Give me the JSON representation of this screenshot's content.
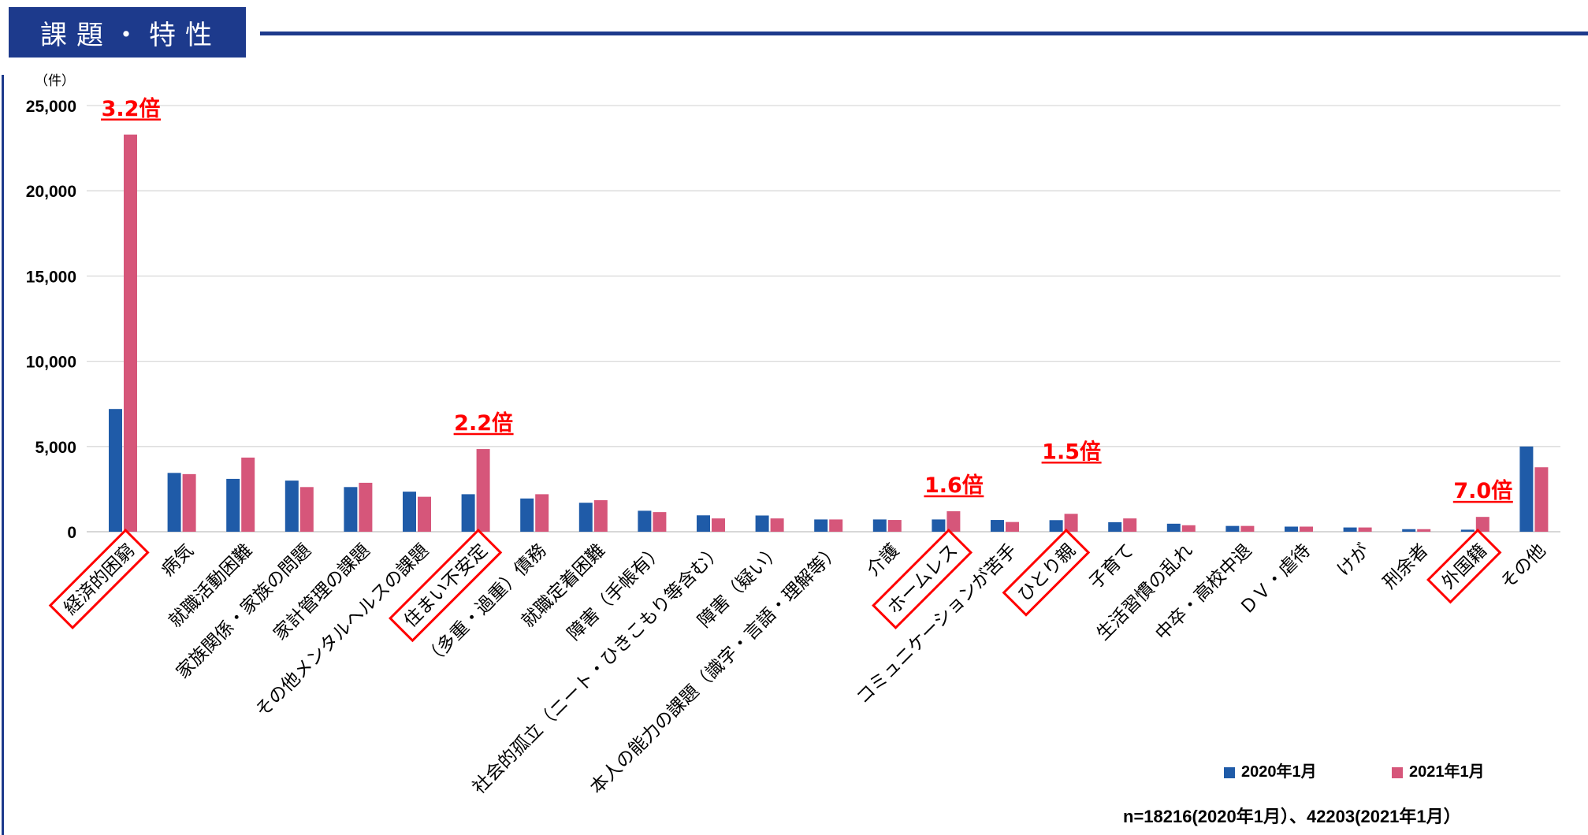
{
  "header": {
    "title": "課題・特性"
  },
  "chart_data": {
    "type": "bar",
    "ylabel": "（件）",
    "ylim": [
      0,
      25000
    ],
    "y_ticks": [
      "0",
      "5,000",
      "10,000",
      "15,000",
      "20,000",
      "25,000"
    ],
    "y_tick_values": [
      0,
      5000,
      10000,
      15000,
      20000,
      25000
    ],
    "grid": true,
    "legend_position": "bottom-right",
    "categories": [
      "経済的困窮",
      "病気",
      "就職活動困難",
      "家族関係・家族の問題",
      "家計管理の課題",
      "その他メンタルヘルスの課題",
      "住まい不安定",
      "（多重・過重）債務",
      "就職定着困難",
      "障害（手帳有）",
      "社会的孤立（ニート・ひきこもり等含む）",
      "障害（疑い）",
      "本人の能力の課題（識字・言語・理解等）",
      "介護",
      "ホームレス",
      "コミュニケーションが苦手",
      "ひとり親",
      "子育て",
      "生活習慣の乱れ",
      "中卒・高校中退",
      "ＤＶ・虐待",
      "けが",
      "刑余者",
      "外国籍",
      "その他"
    ],
    "series": [
      {
        "name": "2020年1月",
        "color": "#1f5ba8",
        "values": [
          7200,
          3450,
          3100,
          3000,
          2620,
          2350,
          2200,
          1950,
          1700,
          1230,
          960,
          950,
          720,
          720,
          720,
          690,
          680,
          560,
          470,
          340,
          300,
          250,
          150,
          120,
          5000
        ]
      },
      {
        "name": "2021年1月",
        "color": "#d6567a",
        "values": [
          23300,
          3380,
          4350,
          2620,
          2870,
          2050,
          4850,
          2200,
          1850,
          1150,
          780,
          780,
          720,
          690,
          1200,
          570,
          1050,
          780,
          380,
          340,
          300,
          250,
          150,
          870,
          3780
        ]
      }
    ],
    "annotations": [
      {
        "text": "3.2倍",
        "category": "経済的困窮",
        "value": 23300
      },
      {
        "text": "2.2倍",
        "category": "住まい不安定",
        "value": 4850
      },
      {
        "text": "1.6倍",
        "category": "ホームレス",
        "value": 1200
      },
      {
        "text": "1.5倍",
        "category": "ひとり親",
        "value": 1050
      },
      {
        "text": "7.0倍",
        "category": "外国籍",
        "value": 870
      }
    ],
    "highlighted_categories": [
      "経済的困窮",
      "住まい不安定",
      "ホームレス",
      "ひとり親",
      "外国籍"
    ],
    "annotation_color": "#ff0000"
  },
  "footer": {
    "note": "n=18216(2020年1月）、42203(2021年1月）"
  }
}
